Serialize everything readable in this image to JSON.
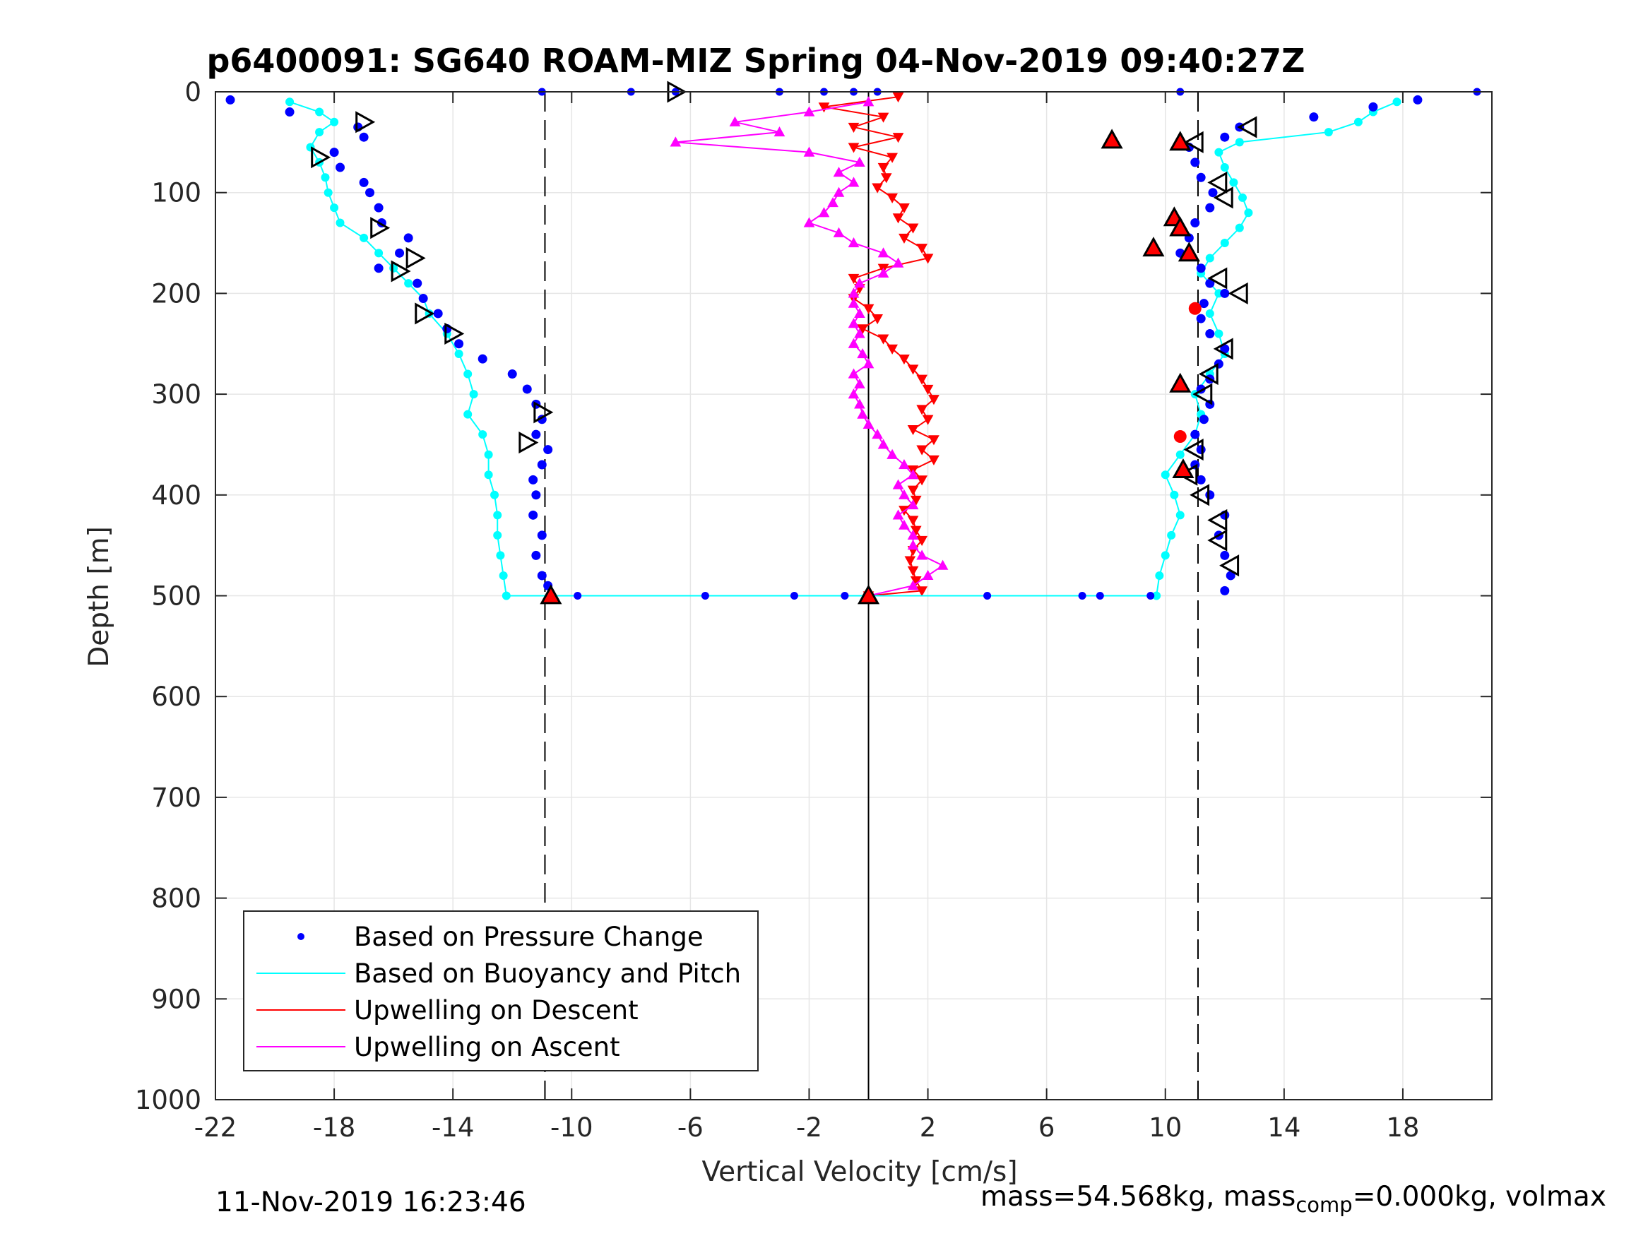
{
  "chart_data": {
    "type": "scatter",
    "title": "p6400091: SG640 ROAM-MIZ Spring 04-Nov-2019 09:40:27Z",
    "xlabel": "Vertical Velocity [cm/s]",
    "ylabel": "Depth [m]",
    "xlim": [
      -22,
      21
    ],
    "ylim": [
      1000,
      0
    ],
    "y_reversed": true,
    "grid": true,
    "legend_position": "bottom-left",
    "xticks": [
      -22,
      -18,
      -14,
      -10,
      -6,
      -2,
      2,
      6,
      10,
      14,
      18
    ],
    "xtick_labels": [
      "-22",
      "-18",
      "-14",
      "-10",
      "-6",
      "-2",
      "2",
      "6",
      "10",
      "14",
      "18"
    ],
    "yticks": [
      0,
      100,
      200,
      300,
      400,
      500,
      600,
      700,
      800,
      900,
      1000
    ],
    "ytick_labels": [
      "0",
      "100",
      "200",
      "300",
      "400",
      "500",
      "600",
      "700",
      "800",
      "900",
      "1000"
    ],
    "reference_lines": [
      {
        "style": "dashed",
        "x": -10.9
      },
      {
        "style": "solid",
        "x": 0
      },
      {
        "style": "dashed",
        "x": 11.1
      }
    ],
    "series": [
      {
        "name": "Based on Pressure Change",
        "color": "#0000ff",
        "marker": "dot",
        "line": false,
        "descent": {
          "depth": [
            8,
            20,
            35,
            45,
            60,
            75,
            90,
            100,
            115,
            130,
            145,
            160,
            175,
            190,
            205,
            220,
            235,
            250,
            265,
            280,
            295,
            310,
            325,
            340,
            355,
            370,
            385,
            400,
            420,
            440,
            460,
            480,
            490,
            500
          ],
          "velocity": [
            -21.5,
            -19.5,
            -17.2,
            -17.0,
            -18.0,
            -17.8,
            -17.0,
            -16.8,
            -16.5,
            -16.4,
            -15.5,
            -15.8,
            -16.5,
            -15.2,
            -15.0,
            -14.5,
            -14.2,
            -13.8,
            -13.0,
            -12.0,
            -11.5,
            -11.2,
            -11.0,
            -11.2,
            -10.8,
            -11.0,
            -11.3,
            -11.2,
            -11.3,
            -11.0,
            -11.2,
            -11.0,
            -10.8,
            -10.7
          ]
        },
        "ascent": {
          "depth": [
            495,
            480,
            460,
            440,
            420,
            400,
            385,
            370,
            355,
            340,
            325,
            310,
            295,
            285,
            270,
            255,
            240,
            225,
            210,
            200,
            190,
            175,
            160,
            145,
            130,
            115,
            100,
            85,
            70,
            55,
            45,
            35,
            25,
            15,
            8
          ],
          "velocity": [
            12.0,
            12.2,
            12.0,
            11.8,
            12.0,
            11.5,
            11.2,
            11.0,
            11.2,
            11.0,
            11.3,
            11.5,
            11.2,
            11.5,
            11.8,
            12.0,
            11.5,
            11.2,
            11.3,
            12.0,
            11.5,
            11.2,
            10.5,
            10.8,
            11.0,
            11.5,
            11.6,
            11.2,
            11.0,
            10.8,
            12.0,
            12.5,
            15.0,
            17.0,
            18.5
          ]
        },
        "surface_and_bottom_points": {
          "depth": [
            0,
            0,
            0,
            0,
            0,
            0,
            0,
            0,
            0,
            500,
            500,
            500,
            500,
            500,
            500,
            500,
            500
          ],
          "velocity": [
            -11.0,
            -8.0,
            -6.5,
            -3.0,
            -1.5,
            -0.5,
            0.3,
            10.5,
            20.5,
            -9.8,
            -5.5,
            -2.5,
            -0.8,
            4.0,
            7.2,
            7.8,
            9.5
          ]
        }
      },
      {
        "name": "Based on Buoyancy and Pitch",
        "color": "#00ffff",
        "marker": "dot-line",
        "line": true,
        "descent": {
          "depth": [
            10,
            20,
            30,
            40,
            55,
            70,
            85,
            100,
            115,
            130,
            145,
            160,
            175,
            190,
            205,
            220,
            240,
            260,
            280,
            300,
            320,
            340,
            360,
            380,
            400,
            420,
            440,
            460,
            480,
            500
          ],
          "velocity": [
            -19.5,
            -18.5,
            -18.0,
            -18.5,
            -18.8,
            -18.5,
            -18.3,
            -18.2,
            -18.0,
            -17.8,
            -17.0,
            -16.5,
            -16.0,
            -15.5,
            -15.0,
            -14.8,
            -14.2,
            -13.8,
            -13.5,
            -13.3,
            -13.5,
            -13.0,
            -12.8,
            -12.8,
            -12.6,
            -12.5,
            -12.5,
            -12.4,
            -12.3,
            -12.2
          ]
        },
        "ascent": {
          "depth": [
            500,
            480,
            460,
            440,
            420,
            400,
            380,
            360,
            340,
            320,
            300,
            280,
            260,
            240,
            220,
            200,
            180,
            165,
            150,
            135,
            120,
            105,
            90,
            75,
            60,
            50,
            40,
            30,
            20,
            10
          ],
          "velocity": [
            9.7,
            9.8,
            10.0,
            10.2,
            10.5,
            10.3,
            10.0,
            10.5,
            11.0,
            11.2,
            11.0,
            11.5,
            12.0,
            11.8,
            11.5,
            11.8,
            11.2,
            11.5,
            12.0,
            12.5,
            12.8,
            12.6,
            12.3,
            12.0,
            11.8,
            12.5,
            15.5,
            16.5,
            17.0,
            17.8
          ]
        },
        "bottom_connector": {
          "depth": [
            500,
            500
          ],
          "velocity": [
            -12.2,
            9.7
          ]
        }
      },
      {
        "name": "Upwelling on Descent",
        "color": "#ff0000",
        "marker": "triangle-down",
        "line": true,
        "depth": [
          5,
          15,
          25,
          35,
          45,
          55,
          65,
          75,
          85,
          95,
          105,
          115,
          125,
          135,
          145,
          155,
          165,
          175,
          185,
          195,
          205,
          215,
          225,
          235,
          245,
          255,
          265,
          275,
          285,
          295,
          305,
          315,
          325,
          335,
          345,
          355,
          365,
          375,
          385,
          395,
          405,
          415,
          425,
          435,
          445,
          455,
          465,
          475,
          485,
          495,
          500
        ],
        "velocity": [
          1.0,
          -1.5,
          0.5,
          -0.5,
          1.0,
          -0.5,
          0.8,
          0.5,
          0.6,
          0.3,
          0.8,
          1.2,
          1.0,
          1.5,
          1.2,
          1.8,
          2.0,
          0.5,
          -0.5,
          -0.3,
          -0.5,
          0.0,
          0.3,
          -0.2,
          0.5,
          0.8,
          1.2,
          1.5,
          1.8,
          2.0,
          2.2,
          1.8,
          2.0,
          1.5,
          2.2,
          1.8,
          2.2,
          1.5,
          1.8,
          1.5,
          1.6,
          1.2,
          1.5,
          1.6,
          1.8,
          1.5,
          1.4,
          1.5,
          1.6,
          1.8,
          0.0
        ]
      },
      {
        "name": "Upwelling on Ascent",
        "color": "#ff00ff",
        "marker": "triangle-up",
        "line": true,
        "depth": [
          500,
          490,
          480,
          470,
          460,
          450,
          440,
          430,
          420,
          410,
          400,
          390,
          380,
          370,
          360,
          350,
          340,
          330,
          320,
          310,
          300,
          290,
          280,
          270,
          260,
          250,
          240,
          230,
          220,
          210,
          200,
          190,
          180,
          170,
          160,
          150,
          140,
          130,
          120,
          110,
          100,
          90,
          80,
          70,
          60,
          50,
          40,
          30,
          20,
          10
        ],
        "velocity": [
          0.0,
          1.5,
          2.0,
          2.5,
          1.8,
          1.5,
          1.5,
          1.2,
          1.0,
          1.5,
          1.2,
          1.0,
          1.5,
          1.2,
          0.8,
          0.5,
          0.3,
          0.0,
          -0.2,
          -0.3,
          -0.5,
          -0.3,
          -0.5,
          0.0,
          -0.2,
          -0.5,
          -0.3,
          -0.5,
          -0.3,
          -0.5,
          -0.5,
          -0.3,
          0.5,
          1.0,
          0.5,
          -0.5,
          -1.0,
          -2.0,
          -1.5,
          -1.2,
          -1.0,
          -0.5,
          -1.0,
          -0.3,
          -2.0,
          -6.5,
          -3.0,
          -4.5,
          -2.0,
          0.0
        ]
      }
    ],
    "stall_markers": {
      "descent_open": {
        "depth": [
          0,
          30,
          65,
          135,
          165,
          178,
          220,
          240,
          318,
          348
        ],
        "velocity": [
          -6.5,
          -17.0,
          -18.5,
          -16.5,
          -15.3,
          -15.8,
          -15.0,
          -14.0,
          -11.0,
          -11.5
        ]
      },
      "ascent_open": {
        "depth": [
          35,
          50,
          90,
          105,
          185,
          200,
          255,
          280,
          300,
          355,
          380,
          400,
          425,
          445,
          470
        ],
        "velocity": [
          12.8,
          11.0,
          11.8,
          12.0,
          11.8,
          12.5,
          12.0,
          11.5,
          11.3,
          11.0,
          10.8,
          11.2,
          11.8,
          11.8,
          12.2
        ]
      },
      "red_filled": {
        "depth": [
          48,
          50,
          125,
          135,
          155,
          160,
          290,
          375,
          500,
          500
        ],
        "velocity": [
          8.2,
          10.5,
          10.3,
          10.5,
          9.6,
          10.8,
          10.5,
          10.6,
          -10.7,
          0.0
        ]
      },
      "red_dots": {
        "depth": [
          215,
          342
        ],
        "velocity": [
          11.0,
          10.5
        ]
      }
    }
  },
  "footer": {
    "timestamp": "11-Nov-2019 16:23:46",
    "mass_text": "mass=54.568kg, mass",
    "mass_sub": "comp",
    "mass_rest": "=0.000kg, volmax"
  }
}
